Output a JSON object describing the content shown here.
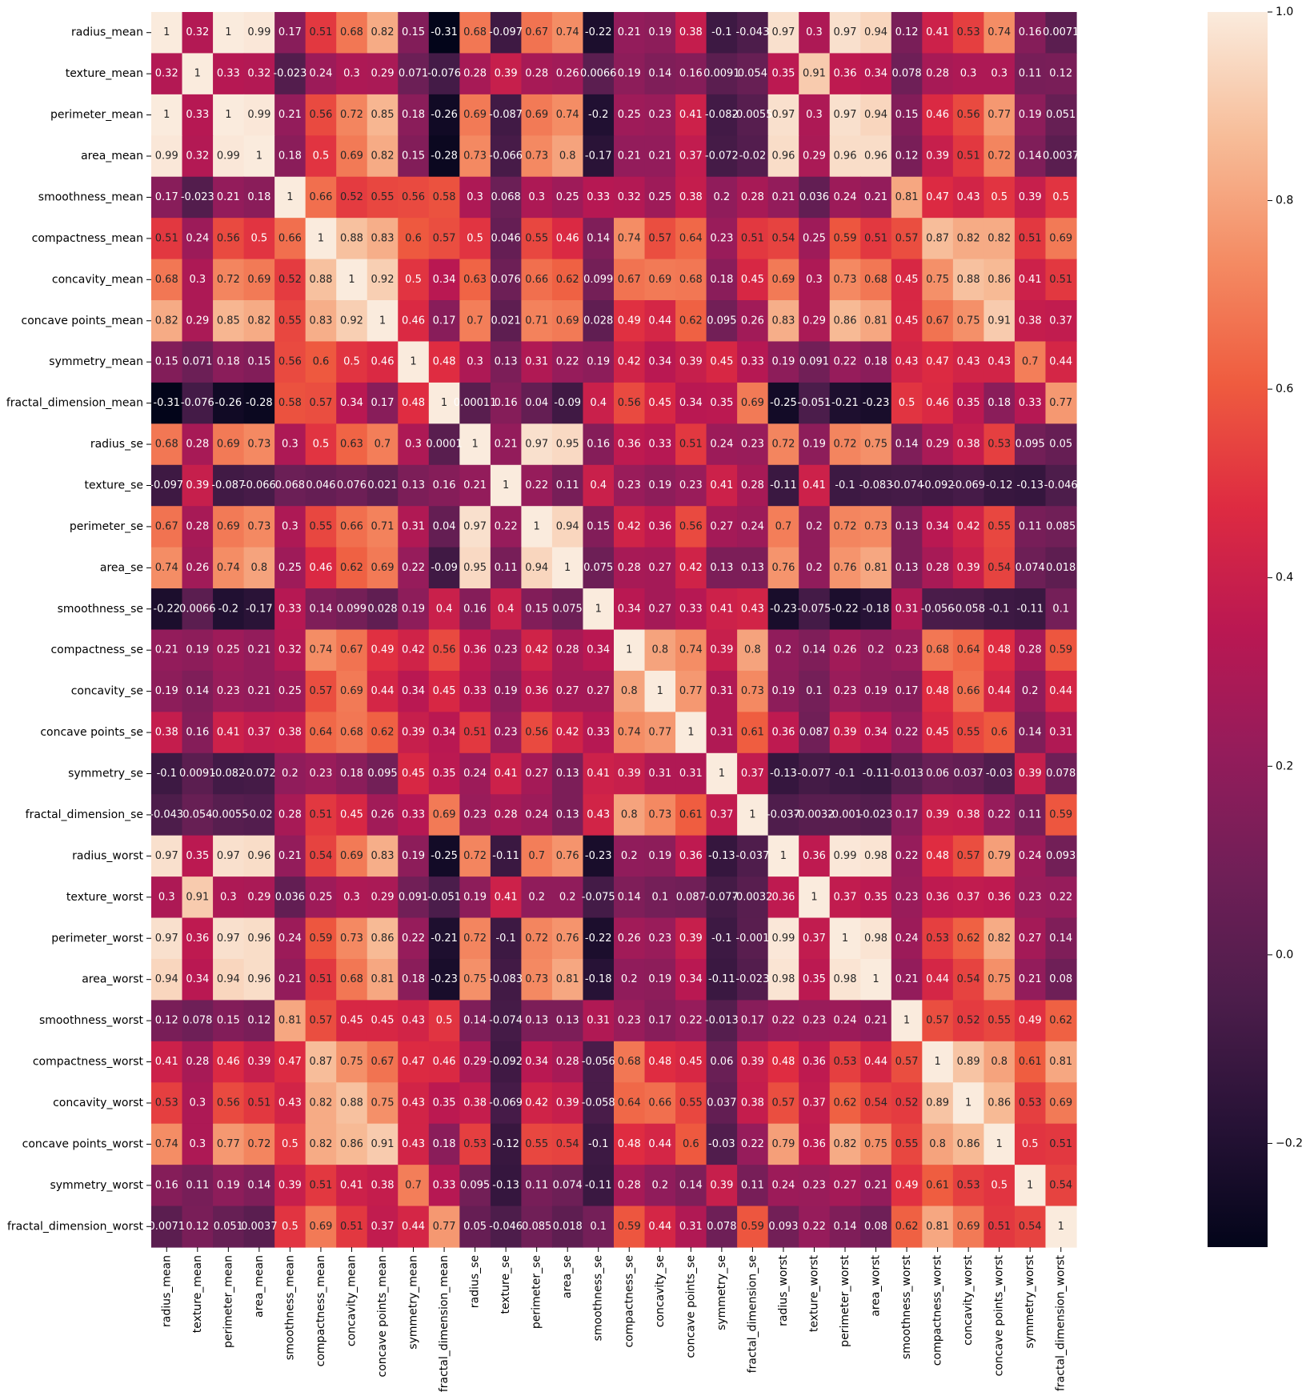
{
  "chart_data": {
    "type": "heatmap",
    "variables": [
      "radius_mean",
      "texture_mean",
      "perimeter_mean",
      "area_mean",
      "smoothness_mean",
      "compactness_mean",
      "concavity_mean",
      "concave points_mean",
      "symmetry_mean",
      "fractal_dimension_mean",
      "radius_se",
      "texture_se",
      "perimeter_se",
      "area_se",
      "smoothness_se",
      "compactness_se",
      "concavity_se",
      "concave points_se",
      "symmetry_se",
      "fractal_dimension_se",
      "radius_worst",
      "texture_worst",
      "perimeter_worst",
      "area_worst",
      "smoothness_worst",
      "compactness_worst",
      "concavity_worst",
      "concave points_worst",
      "symmetry_worst",
      "fractal_dimension_worst"
    ],
    "annotations": [
      [
        "1",
        "0.32",
        "1",
        "0.99",
        "0.17",
        "0.51",
        "0.68",
        "0.82",
        "0.15",
        "-0.31",
        "0.68",
        "-0.097",
        "0.67",
        "0.74",
        "-0.22",
        "0.21",
        "0.19",
        "0.38",
        "-0.1",
        "-0.043",
        "0.97",
        "0.3",
        "0.97",
        "0.94",
        "0.12",
        "0.41",
        "0.53",
        "0.74",
        "0.16",
        "0.0071"
      ],
      [
        "0.32",
        "1",
        "0.33",
        "0.32",
        "-0.023",
        "0.24",
        "0.3",
        "0.29",
        "0.071",
        "-0.076",
        "0.28",
        "0.39",
        "0.28",
        "0.26",
        "0.0066",
        "0.19",
        "0.14",
        "0.16",
        "0.0091",
        "0.054",
        "0.35",
        "0.91",
        "0.36",
        "0.34",
        "0.078",
        "0.28",
        "0.3",
        "0.3",
        "0.11",
        "0.12"
      ],
      [
        "1",
        "0.33",
        "1",
        "0.99",
        "0.21",
        "0.56",
        "0.72",
        "0.85",
        "0.18",
        "-0.26",
        "0.69",
        "-0.087",
        "0.69",
        "0.74",
        "-0.2",
        "0.25",
        "0.23",
        "0.41",
        "-0.082",
        "-0.0055",
        "0.97",
        "0.3",
        "0.97",
        "0.94",
        "0.15",
        "0.46",
        "0.56",
        "0.77",
        "0.19",
        "0.051"
      ],
      [
        "0.99",
        "0.32",
        "0.99",
        "1",
        "0.18",
        "0.5",
        "0.69",
        "0.82",
        "0.15",
        "-0.28",
        "0.73",
        "-0.066",
        "0.73",
        "0.8",
        "-0.17",
        "0.21",
        "0.21",
        "0.37",
        "-0.072",
        "-0.02",
        "0.96",
        "0.29",
        "0.96",
        "0.96",
        "0.12",
        "0.39",
        "0.51",
        "0.72",
        "0.14",
        "0.0037"
      ],
      [
        "0.17",
        "-0.023",
        "0.21",
        "0.18",
        "1",
        "0.66",
        "0.52",
        "0.55",
        "0.56",
        "0.58",
        "0.3",
        "0.068",
        "0.3",
        "0.25",
        "0.33",
        "0.32",
        "0.25",
        "0.38",
        "0.2",
        "0.28",
        "0.21",
        "0.036",
        "0.24",
        "0.21",
        "0.81",
        "0.47",
        "0.43",
        "0.5",
        "0.39",
        "0.5"
      ],
      [
        "0.51",
        "0.24",
        "0.56",
        "0.5",
        "0.66",
        "1",
        "0.88",
        "0.83",
        "0.6",
        "0.57",
        "0.5",
        "0.046",
        "0.55",
        "0.46",
        "0.14",
        "0.74",
        "0.57",
        "0.64",
        "0.23",
        "0.51",
        "0.54",
        "0.25",
        "0.59",
        "0.51",
        "0.57",
        "0.87",
        "0.82",
        "0.82",
        "0.51",
        "0.69"
      ],
      [
        "0.68",
        "0.3",
        "0.72",
        "0.69",
        "0.52",
        "0.88",
        "1",
        "0.92",
        "0.5",
        "0.34",
        "0.63",
        "0.076",
        "0.66",
        "0.62",
        "0.099",
        "0.67",
        "0.69",
        "0.68",
        "0.18",
        "0.45",
        "0.69",
        "0.3",
        "0.73",
        "0.68",
        "0.45",
        "0.75",
        "0.88",
        "0.86",
        "0.41",
        "0.51"
      ],
      [
        "0.82",
        "0.29",
        "0.85",
        "0.82",
        "0.55",
        "0.83",
        "0.92",
        "1",
        "0.46",
        "0.17",
        "0.7",
        "0.021",
        "0.71",
        "0.69",
        "0.028",
        "0.49",
        "0.44",
        "0.62",
        "0.095",
        "0.26",
        "0.83",
        "0.29",
        "0.86",
        "0.81",
        "0.45",
        "0.67",
        "0.75",
        "0.91",
        "0.38",
        "0.37"
      ],
      [
        "0.15",
        "0.071",
        "0.18",
        "0.15",
        "0.56",
        "0.6",
        "0.5",
        "0.46",
        "1",
        "0.48",
        "0.3",
        "0.13",
        "0.31",
        "0.22",
        "0.19",
        "0.42",
        "0.34",
        "0.39",
        "0.45",
        "0.33",
        "0.19",
        "0.091",
        "0.22",
        "0.18",
        "0.43",
        "0.47",
        "0.43",
        "0.43",
        "0.7",
        "0.44"
      ],
      [
        "-0.31",
        "-0.076",
        "-0.26",
        "-0.28",
        "0.58",
        "0.57",
        "0.34",
        "0.17",
        "0.48",
        "1",
        "0.00011",
        "0.16",
        "0.04",
        "-0.09",
        "0.4",
        "0.56",
        "0.45",
        "0.34",
        "0.35",
        "0.69",
        "-0.25",
        "-0.051",
        "-0.21",
        "-0.23",
        "0.5",
        "0.46",
        "0.35",
        "0.18",
        "0.33",
        "0.77"
      ],
      [
        "0.68",
        "0.28",
        "0.69",
        "0.73",
        "0.3",
        "0.5",
        "0.63",
        "0.7",
        "0.3",
        "0.0001",
        "1",
        "0.21",
        "0.97",
        "0.95",
        "0.16",
        "0.36",
        "0.33",
        "0.51",
        "0.24",
        "0.23",
        "0.72",
        "0.19",
        "0.72",
        "0.75",
        "0.14",
        "0.29",
        "0.38",
        "0.53",
        "0.095",
        "0.05"
      ],
      [
        "-0.097",
        "0.39",
        "-0.087",
        "-0.066",
        "0.068",
        "0.046",
        "0.076",
        "0.021",
        "0.13",
        "0.16",
        "0.21",
        "1",
        "0.22",
        "0.11",
        "0.4",
        "0.23",
        "0.19",
        "0.23",
        "0.41",
        "0.28",
        "-0.11",
        "0.41",
        "-0.1",
        "-0.083",
        "-0.074",
        "-0.092",
        "-0.069",
        "-0.12",
        "-0.13",
        "-0.046"
      ],
      [
        "0.67",
        "0.28",
        "0.69",
        "0.73",
        "0.3",
        "0.55",
        "0.66",
        "0.71",
        "0.31",
        "0.04",
        "0.97",
        "0.22",
        "1",
        "0.94",
        "0.15",
        "0.42",
        "0.36",
        "0.56",
        "0.27",
        "0.24",
        "0.7",
        "0.2",
        "0.72",
        "0.73",
        "0.13",
        "0.34",
        "0.42",
        "0.55",
        "0.11",
        "0.085"
      ],
      [
        "0.74",
        "0.26",
        "0.74",
        "0.8",
        "0.25",
        "0.46",
        "0.62",
        "0.69",
        "0.22",
        "-0.09",
        "0.95",
        "0.11",
        "0.94",
        "1",
        "0.075",
        "0.28",
        "0.27",
        "0.42",
        "0.13",
        "0.13",
        "0.76",
        "0.2",
        "0.76",
        "0.81",
        "0.13",
        "0.28",
        "0.39",
        "0.54",
        "0.074",
        "0.018"
      ],
      [
        "-0.22",
        "0.0066",
        "-0.2",
        "-0.17",
        "0.33",
        "0.14",
        "0.099",
        "0.028",
        "0.19",
        "0.4",
        "0.16",
        "0.4",
        "0.15",
        "0.075",
        "1",
        "0.34",
        "0.27",
        "0.33",
        "0.41",
        "0.43",
        "-0.23",
        "-0.075",
        "-0.22",
        "-0.18",
        "0.31",
        "-0.056",
        "-0.058",
        "-0.1",
        "-0.11",
        "0.1"
      ],
      [
        "0.21",
        "0.19",
        "0.25",
        "0.21",
        "0.32",
        "0.74",
        "0.67",
        "0.49",
        "0.42",
        "0.56",
        "0.36",
        "0.23",
        "0.42",
        "0.28",
        "0.34",
        "1",
        "0.8",
        "0.74",
        "0.39",
        "0.8",
        "0.2",
        "0.14",
        "0.26",
        "0.2",
        "0.23",
        "0.68",
        "0.64",
        "0.48",
        "0.28",
        "0.59"
      ],
      [
        "0.19",
        "0.14",
        "0.23",
        "0.21",
        "0.25",
        "0.57",
        "0.69",
        "0.44",
        "0.34",
        "0.45",
        "0.33",
        "0.19",
        "0.36",
        "0.27",
        "0.27",
        "0.8",
        "1",
        "0.77",
        "0.31",
        "0.73",
        "0.19",
        "0.1",
        "0.23",
        "0.19",
        "0.17",
        "0.48",
        "0.66",
        "0.44",
        "0.2",
        "0.44"
      ],
      [
        "0.38",
        "0.16",
        "0.41",
        "0.37",
        "0.38",
        "0.64",
        "0.68",
        "0.62",
        "0.39",
        "0.34",
        "0.51",
        "0.23",
        "0.56",
        "0.42",
        "0.33",
        "0.74",
        "0.77",
        "1",
        "0.31",
        "0.61",
        "0.36",
        "0.087",
        "0.39",
        "0.34",
        "0.22",
        "0.45",
        "0.55",
        "0.6",
        "0.14",
        "0.31"
      ],
      [
        "-0.1",
        "0.0091",
        "-0.082",
        "-0.072",
        "0.2",
        "0.23",
        "0.18",
        "0.095",
        "0.45",
        "0.35",
        "0.24",
        "0.41",
        "0.27",
        "0.13",
        "0.41",
        "0.39",
        "0.31",
        "0.31",
        "1",
        "0.37",
        "-0.13",
        "-0.077",
        "-0.1",
        "-0.11",
        "-0.013",
        "0.06",
        "0.037",
        "-0.03",
        "0.39",
        "0.078"
      ],
      [
        "-0.043",
        "0.054",
        "-0.0055",
        "-0.02",
        "0.28",
        "0.51",
        "0.45",
        "0.26",
        "0.33",
        "0.69",
        "0.23",
        "0.28",
        "0.24",
        "0.13",
        "0.43",
        "0.8",
        "0.73",
        "0.61",
        "0.37",
        "1",
        "-0.037",
        "-0.0032",
        "-0.001",
        "-0.023",
        "0.17",
        "0.39",
        "0.38",
        "0.22",
        "0.11",
        "0.59"
      ],
      [
        "0.97",
        "0.35",
        "0.97",
        "0.96",
        "0.21",
        "0.54",
        "0.69",
        "0.83",
        "0.19",
        "-0.25",
        "0.72",
        "-0.11",
        "0.7",
        "0.76",
        "-0.23",
        "0.2",
        "0.19",
        "0.36",
        "-0.13",
        "-0.037",
        "1",
        "0.36",
        "0.99",
        "0.98",
        "0.22",
        "0.48",
        "0.57",
        "0.79",
        "0.24",
        "0.093"
      ],
      [
        "0.3",
        "0.91",
        "0.3",
        "0.29",
        "0.036",
        "0.25",
        "0.3",
        "0.29",
        "0.091",
        "-0.051",
        "0.19",
        "0.41",
        "0.2",
        "0.2",
        "-0.075",
        "0.14",
        "0.1",
        "0.087",
        "-0.077",
        "-0.0032",
        "0.36",
        "1",
        "0.37",
        "0.35",
        "0.23",
        "0.36",
        "0.37",
        "0.36",
        "0.23",
        "0.22"
      ],
      [
        "0.97",
        "0.36",
        "0.97",
        "0.96",
        "0.24",
        "0.59",
        "0.73",
        "0.86",
        "0.22",
        "-0.21",
        "0.72",
        "-0.1",
        "0.72",
        "0.76",
        "-0.22",
        "0.26",
        "0.23",
        "0.39",
        "-0.1",
        "-0.001",
        "0.99",
        "0.37",
        "1",
        "0.98",
        "0.24",
        "0.53",
        "0.62",
        "0.82",
        "0.27",
        "0.14"
      ],
      [
        "0.94",
        "0.34",
        "0.94",
        "0.96",
        "0.21",
        "0.51",
        "0.68",
        "0.81",
        "0.18",
        "-0.23",
        "0.75",
        "-0.083",
        "0.73",
        "0.81",
        "-0.18",
        "0.2",
        "0.19",
        "0.34",
        "-0.11",
        "-0.023",
        "0.98",
        "0.35",
        "0.98",
        "1",
        "0.21",
        "0.44",
        "0.54",
        "0.75",
        "0.21",
        "0.08"
      ],
      [
        "0.12",
        "0.078",
        "0.15",
        "0.12",
        "0.81",
        "0.57",
        "0.45",
        "0.45",
        "0.43",
        "0.5",
        "0.14",
        "-0.074",
        "0.13",
        "0.13",
        "0.31",
        "0.23",
        "0.17",
        "0.22",
        "-0.013",
        "0.17",
        "0.22",
        "0.23",
        "0.24",
        "0.21",
        "1",
        "0.57",
        "0.52",
        "0.55",
        "0.49",
        "0.62"
      ],
      [
        "0.41",
        "0.28",
        "0.46",
        "0.39",
        "0.47",
        "0.87",
        "0.75",
        "0.67",
        "0.47",
        "0.46",
        "0.29",
        "-0.092",
        "0.34",
        "0.28",
        "-0.056",
        "0.68",
        "0.48",
        "0.45",
        "0.06",
        "0.39",
        "0.48",
        "0.36",
        "0.53",
        "0.44",
        "0.57",
        "1",
        "0.89",
        "0.8",
        "0.61",
        "0.81"
      ],
      [
        "0.53",
        "0.3",
        "0.56",
        "0.51",
        "0.43",
        "0.82",
        "0.88",
        "0.75",
        "0.43",
        "0.35",
        "0.38",
        "-0.069",
        "0.42",
        "0.39",
        "-0.058",
        "0.64",
        "0.66",
        "0.55",
        "0.037",
        "0.38",
        "0.57",
        "0.37",
        "0.62",
        "0.54",
        "0.52",
        "0.89",
        "1",
        "0.86",
        "0.53",
        "0.69"
      ],
      [
        "0.74",
        "0.3",
        "0.77",
        "0.72",
        "0.5",
        "0.82",
        "0.86",
        "0.91",
        "0.43",
        "0.18",
        "0.53",
        "-0.12",
        "0.55",
        "0.54",
        "-0.1",
        "0.48",
        "0.44",
        "0.6",
        "-0.03",
        "0.22",
        "0.79",
        "0.36",
        "0.82",
        "0.75",
        "0.55",
        "0.8",
        "0.86",
        "1",
        "0.5",
        "0.51"
      ],
      [
        "0.16",
        "0.11",
        "0.19",
        "0.14",
        "0.39",
        "0.51",
        "0.41",
        "0.38",
        "0.7",
        "0.33",
        "0.095",
        "-0.13",
        "0.11",
        "0.074",
        "-0.11",
        "0.28",
        "0.2",
        "0.14",
        "0.39",
        "0.11",
        "0.24",
        "0.23",
        "0.27",
        "0.21",
        "0.49",
        "0.61",
        "0.53",
        "0.5",
        "1",
        "0.54"
      ],
      [
        "0.0071",
        "0.12",
        "0.051",
        "0.0037",
        "0.5",
        "0.69",
        "0.51",
        "0.37",
        "0.44",
        "0.77",
        "0.05",
        "-0.046",
        "0.085",
        "0.018",
        "0.1",
        "0.59",
        "0.44",
        "0.31",
        "0.078",
        "0.59",
        "0.093",
        "0.22",
        "0.14",
        "0.08",
        "0.62",
        "0.81",
        "0.69",
        "0.51",
        "0.54",
        "1"
      ]
    ],
    "colorbar": {
      "colormap": "rocket",
      "vmin": -0.31,
      "vmax": 1.0,
      "ticks": [
        -0.2,
        0.0,
        0.2,
        0.4,
        0.6,
        0.8,
        1.0
      ],
      "tick_labels": [
        "−0.2",
        "0.0",
        "0.2",
        "0.4",
        "0.6",
        "0.8",
        "1.0"
      ]
    },
    "grid": false,
    "legend": "colorbar-right"
  }
}
